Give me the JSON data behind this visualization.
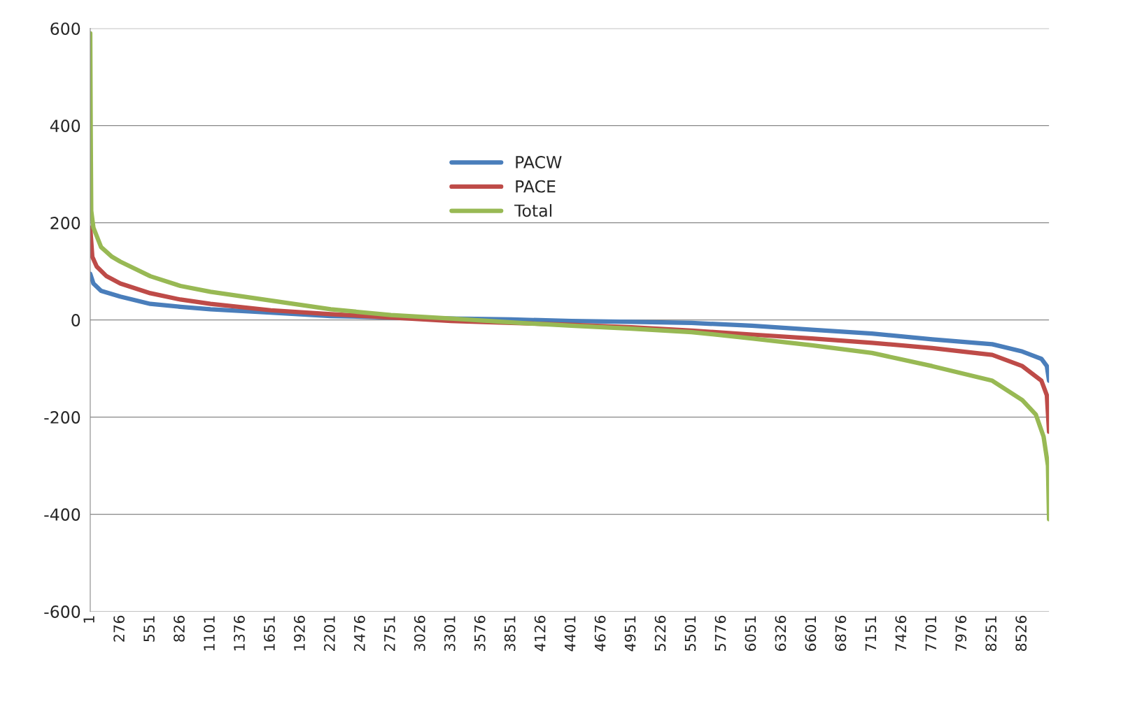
{
  "chart_data": {
    "type": "line",
    "series": [
      {
        "name": "PACW",
        "color": "#4a7ebb",
        "x": [
          1,
          30,
          100,
          276,
          551,
          826,
          1101,
          1651,
          2201,
          2751,
          3301,
          3851,
          4401,
          4951,
          5501,
          6051,
          6601,
          7151,
          7701,
          8251,
          8526,
          8700,
          8750,
          8770
        ],
        "values": [
          95,
          75,
          60,
          48,
          33,
          27,
          22,
          15,
          8,
          5,
          3,
          1,
          -2,
          -4,
          -6,
          -12,
          -20,
          -28,
          -40,
          -50,
          -65,
          -80,
          -95,
          -125
        ]
      },
      {
        "name": "PACE",
        "color": "#be4b48",
        "x": [
          1,
          20,
          60,
          150,
          276,
          551,
          826,
          1101,
          1651,
          2201,
          2751,
          3301,
          3851,
          4401,
          4951,
          5501,
          6051,
          6601,
          7151,
          7701,
          8251,
          8526,
          8700,
          8750,
          8770
        ],
        "values": [
          190,
          130,
          110,
          90,
          75,
          55,
          42,
          33,
          20,
          12,
          5,
          -2,
          -6,
          -10,
          -15,
          -22,
          -30,
          -38,
          -47,
          -58,
          -72,
          -95,
          -125,
          -155,
          -230
        ]
      },
      {
        "name": "Total",
        "color": "#98b954",
        "x": [
          1,
          5,
          10,
          30,
          100,
          200,
          276,
          551,
          826,
          1101,
          1651,
          2201,
          2751,
          3301,
          3851,
          4401,
          4951,
          5501,
          6051,
          6601,
          7151,
          7701,
          8251,
          8526,
          8650,
          8720,
          8760,
          8770
        ],
        "values": [
          590,
          400,
          225,
          190,
          150,
          130,
          120,
          90,
          70,
          58,
          40,
          22,
          10,
          3,
          -5,
          -12,
          -18,
          -25,
          -38,
          -52,
          -68,
          -95,
          -125,
          -165,
          -195,
          -240,
          -300,
          -410
        ]
      }
    ],
    "xlim": [
      1,
      8770
    ],
    "xticks": [
      1,
      276,
      551,
      826,
      1101,
      1376,
      1651,
      1926,
      2201,
      2476,
      2751,
      3026,
      3301,
      3576,
      3851,
      4126,
      4401,
      4676,
      4951,
      5226,
      5501,
      5776,
      6051,
      6326,
      6601,
      6876,
      7151,
      7426,
      7701,
      7976,
      8251,
      8526
    ],
    "ylim": [
      -600,
      600
    ],
    "yticks": [
      -600,
      -400,
      -200,
      0,
      200,
      400,
      600
    ],
    "grid": "y",
    "legend": "top",
    "marker": "none",
    "line_style": "solid"
  }
}
